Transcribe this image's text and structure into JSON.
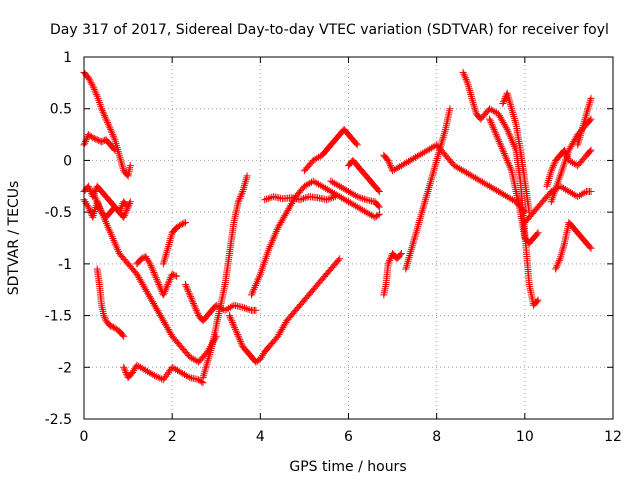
{
  "chart_data": {
    "type": "scatter",
    "title": "Day 317 of 2017, Sidereal Day-to-day VTEC variation (SDTVAR) for receiver foyl",
    "xlabel": "GPS time / hours",
    "ylabel": "SDTVAR / TECUs",
    "xlim": [
      0,
      12
    ],
    "ylim": [
      -2.5,
      1
    ],
    "xticks": [
      0,
      2,
      4,
      6,
      8,
      10,
      12
    ],
    "yticks": [
      -2.5,
      -2,
      -1.5,
      -1,
      -0.5,
      0,
      0.5,
      1
    ],
    "xtick_labels": [
      "0",
      "2",
      "4",
      "6",
      "8",
      "10",
      "12"
    ],
    "ytick_labels": [
      "-2.5",
      "-2",
      "-1.5",
      "-1",
      "-0.5",
      "0",
      "0.5",
      "1"
    ],
    "grid": true,
    "marker": "+",
    "color": "#ff0000",
    "series": [
      {
        "x": [
          0.0,
          0.1,
          0.2,
          0.3,
          0.4,
          0.5,
          0.6,
          0.7,
          0.8,
          0.9,
          1.0,
          1.05
        ],
        "y": [
          0.85,
          0.8,
          0.72,
          0.62,
          0.5,
          0.4,
          0.3,
          0.2,
          0.05,
          -0.1,
          -0.15,
          -0.05
        ]
      },
      {
        "x": [
          0.0,
          0.1,
          0.2,
          0.3,
          0.4,
          0.5,
          0.6,
          0.7
        ],
        "y": [
          0.15,
          0.25,
          0.22,
          0.2,
          0.18,
          0.2,
          0.15,
          0.1
        ]
      },
      {
        "x": [
          0.0,
          0.1,
          0.2,
          0.3,
          0.4,
          0.5,
          0.6,
          0.7,
          0.8,
          0.9,
          1.0,
          1.05
        ],
        "y": [
          -0.3,
          -0.25,
          -0.35,
          -0.25,
          -0.3,
          -0.35,
          -0.4,
          -0.45,
          -0.5,
          -0.4,
          -0.45,
          -0.4
        ]
      },
      {
        "x": [
          0.0,
          0.1,
          0.2,
          0.3,
          0.4,
          0.5,
          0.6,
          0.7,
          0.8,
          0.9,
          1.0
        ],
        "y": [
          -0.38,
          -0.45,
          -0.55,
          -0.4,
          -0.5,
          -0.55,
          -0.5,
          -0.45,
          -0.5,
          -0.55,
          -0.45
        ]
      },
      {
        "x": [
          0.3,
          0.35,
          0.4,
          0.45,
          0.5,
          0.55,
          0.6,
          0.7,
          0.8,
          0.9
        ],
        "y": [
          -1.05,
          -1.2,
          -1.4,
          -1.5,
          -1.55,
          -1.58,
          -1.6,
          -1.62,
          -1.65,
          -1.7
        ]
      },
      {
        "x": [
          0.9,
          1.0,
          1.1,
          1.2,
          1.4,
          1.6,
          1.8,
          2.0,
          2.2,
          2.4,
          2.6,
          2.7
        ],
        "y": [
          -2.0,
          -2.1,
          -2.05,
          -1.98,
          -2.03,
          -2.08,
          -2.12,
          -2.0,
          -2.05,
          -2.1,
          -2.12,
          -2.15
        ]
      },
      {
        "x": [
          0.2,
          0.4,
          0.6,
          0.8,
          1.0,
          1.2,
          1.4,
          1.6,
          1.8,
          2.0,
          2.2,
          2.4,
          2.6,
          2.8,
          3.0
        ],
        "y": [
          -0.3,
          -0.5,
          -0.7,
          -0.9,
          -1.0,
          -1.1,
          -1.25,
          -1.4,
          -1.55,
          -1.7,
          -1.8,
          -1.9,
          -1.95,
          -1.85,
          -1.7
        ]
      },
      {
        "x": [
          1.2,
          1.3,
          1.4,
          1.5,
          1.6,
          1.7,
          1.8,
          1.9,
          2.0,
          2.1
        ],
        "y": [
          -1.0,
          -0.95,
          -0.93,
          -1.0,
          -1.1,
          -1.2,
          -1.3,
          -1.2,
          -1.1,
          -1.12
        ]
      },
      {
        "x": [
          1.8,
          1.9,
          2.0,
          2.1,
          2.2,
          2.3
        ],
        "y": [
          -1.0,
          -0.85,
          -0.7,
          -0.65,
          -0.62,
          -0.6
        ]
      },
      {
        "x": [
          2.3,
          2.4,
          2.5,
          2.6,
          2.7,
          2.8,
          2.9,
          3.0,
          3.2,
          3.4,
          3.6,
          3.8,
          3.9
        ],
        "y": [
          -1.2,
          -1.3,
          -1.4,
          -1.5,
          -1.55,
          -1.5,
          -1.45,
          -1.4,
          -1.45,
          -1.4,
          -1.42,
          -1.45,
          -1.45
        ]
      },
      {
        "x": [
          2.7,
          2.8,
          2.9,
          3.0,
          3.1,
          3.2,
          3.3,
          3.4,
          3.5,
          3.6,
          3.7
        ],
        "y": [
          -2.1,
          -1.95,
          -1.8,
          -1.6,
          -1.4,
          -1.2,
          -0.9,
          -0.6,
          -0.4,
          -0.3,
          -0.15
        ]
      },
      {
        "x": [
          3.3,
          3.4,
          3.5,
          3.6,
          3.7,
          3.8,
          3.9,
          4.0,
          4.1,
          4.2,
          4.4,
          4.6,
          4.8,
          5.0,
          5.2,
          5.4,
          5.6,
          5.8
        ],
        "y": [
          -1.5,
          -1.6,
          -1.7,
          -1.8,
          -1.85,
          -1.9,
          -1.95,
          -1.92,
          -1.85,
          -1.8,
          -1.7,
          -1.55,
          -1.45,
          -1.35,
          -1.25,
          -1.15,
          -1.05,
          -0.95
        ]
      },
      {
        "x": [
          3.8,
          4.0,
          4.2,
          4.4,
          4.6,
          4.8,
          5.0,
          5.2,
          5.4,
          5.6,
          5.8,
          6.0,
          6.2,
          6.4,
          6.6,
          6.7
        ],
        "y": [
          -1.3,
          -1.1,
          -0.85,
          -0.65,
          -0.5,
          -0.35,
          -0.25,
          -0.2,
          -0.25,
          -0.3,
          -0.35,
          -0.4,
          -0.45,
          -0.5,
          -0.55,
          -0.52
        ]
      },
      {
        "x": [
          4.1,
          4.3,
          4.5,
          4.7,
          4.9,
          5.1,
          5.3,
          5.5,
          5.7
        ],
        "y": [
          -0.38,
          -0.35,
          -0.37,
          -0.36,
          -0.38,
          -0.35,
          -0.36,
          -0.38,
          -0.35
        ]
      },
      {
        "x": [
          5.0,
          5.2,
          5.4,
          5.5,
          5.6,
          5.7,
          5.8,
          5.9,
          6.0,
          6.1,
          6.2
        ],
        "y": [
          -0.1,
          0.0,
          0.05,
          0.1,
          0.15,
          0.2,
          0.25,
          0.3,
          0.25,
          0.2,
          0.15
        ]
      },
      {
        "x": [
          5.6,
          5.8,
          6.0,
          6.2,
          6.4,
          6.6,
          6.7
        ],
        "y": [
          -0.2,
          -0.25,
          -0.3,
          -0.35,
          -0.38,
          -0.4,
          -0.45
        ]
      },
      {
        "x": [
          6.0,
          6.1,
          6.2,
          6.3,
          6.4,
          6.5,
          6.6,
          6.7
        ],
        "y": [
          -0.05,
          0.0,
          -0.05,
          -0.1,
          -0.15,
          -0.2,
          -0.25,
          -0.3
        ]
      },
      {
        "x": [
          6.8,
          6.85,
          6.9,
          6.95,
          7.0,
          7.1,
          7.2
        ],
        "y": [
          -1.3,
          -1.2,
          -1.0,
          -0.95,
          -0.9,
          -0.95,
          -0.9
        ]
      },
      {
        "x": [
          7.3,
          7.4,
          7.5,
          7.6,
          7.7,
          7.8,
          7.9,
          8.0,
          8.1,
          8.2,
          8.3
        ],
        "y": [
          -1.05,
          -0.9,
          -0.75,
          -0.6,
          -0.45,
          -0.3,
          -0.15,
          0.0,
          0.15,
          0.3,
          0.5
        ]
      },
      {
        "x": [
          6.8,
          6.9,
          7.0,
          7.2,
          7.4,
          7.6,
          7.8,
          8.0,
          8.2,
          8.4,
          8.6,
          8.8,
          9.0,
          9.2,
          9.4,
          9.6,
          9.8,
          10.0
        ],
        "y": [
          0.05,
          0.0,
          -0.1,
          -0.05,
          0.0,
          0.05,
          0.1,
          0.15,
          0.05,
          -0.05,
          -0.1,
          -0.15,
          -0.2,
          -0.25,
          -0.3,
          -0.35,
          -0.4,
          -0.5
        ]
      },
      {
        "x": [
          8.6,
          8.7,
          8.8,
          8.9,
          9.0,
          9.2,
          9.4,
          9.6,
          9.8,
          9.9,
          10.0,
          10.1,
          10.2,
          10.3
        ],
        "y": [
          0.85,
          0.75,
          0.6,
          0.45,
          0.4,
          0.5,
          0.45,
          0.3,
          0.1,
          -0.2,
          -0.7,
          -1.2,
          -1.4,
          -1.35
        ]
      },
      {
        "x": [
          9.2,
          9.3,
          9.4,
          9.5,
          9.6,
          9.7,
          9.8,
          9.9,
          10.0,
          10.1,
          10.2,
          10.3
        ],
        "y": [
          0.4,
          0.3,
          0.2,
          0.1,
          0.0,
          -0.1,
          -0.3,
          -0.5,
          -0.75,
          -0.8,
          -0.75,
          -0.7
        ]
      },
      {
        "x": [
          9.5,
          9.6,
          9.7,
          9.8,
          9.9,
          10.0,
          10.1
        ],
        "y": [
          0.55,
          0.65,
          0.5,
          0.35,
          0.1,
          -0.2,
          -0.5
        ]
      },
      {
        "x": [
          10.0,
          10.2,
          10.4,
          10.6,
          10.8,
          11.0,
          11.2,
          11.4,
          11.5
        ],
        "y": [
          -0.6,
          -0.5,
          -0.4,
          -0.3,
          -0.25,
          -0.3,
          -0.35,
          -0.3,
          -0.3
        ]
      },
      {
        "x": [
          10.5,
          10.6,
          10.7,
          10.8,
          10.9,
          11.0,
          11.2,
          11.4,
          11.5
        ],
        "y": [
          -0.25,
          -0.1,
          0.0,
          0.05,
          0.1,
          0.0,
          -0.05,
          0.05,
          0.1
        ]
      },
      {
        "x": [
          10.6,
          10.8,
          11.0,
          11.2,
          11.4,
          11.5
        ],
        "y": [
          -0.4,
          -0.15,
          0.1,
          0.25,
          0.35,
          0.4
        ]
      },
      {
        "x": [
          10.7,
          10.8,
          10.9,
          11.0,
          11.1,
          11.2,
          11.3,
          11.4,
          11.5
        ],
        "y": [
          -1.05,
          -0.95,
          -0.8,
          -0.6,
          -0.65,
          -0.7,
          -0.75,
          -0.8,
          -0.85
        ]
      },
      {
        "x": [
          11.2,
          11.3,
          11.4,
          11.5
        ],
        "y": [
          0.15,
          0.3,
          0.45,
          0.6
        ]
      }
    ]
  }
}
